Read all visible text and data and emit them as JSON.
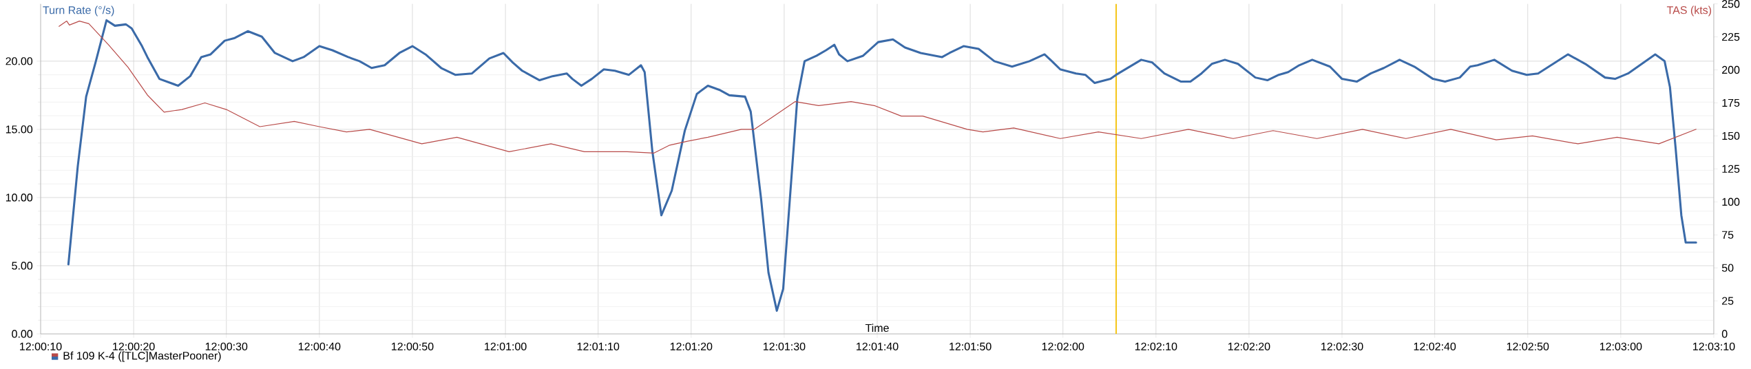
{
  "chart_data": {
    "type": "line",
    "xlabel": "Time",
    "ylabel": "Turn Rate (°/s)",
    "y2label": "TAS (kts)",
    "annotations": [
      "Bf 109 K-4 ([TLC]MasterPooner)"
    ],
    "xlim": [
      12.00278,
      12.05278
    ],
    "xticks": [
      {
        "value": 12.00278,
        "label": "12:00:10"
      },
      {
        "value": 12.00556,
        "label": "12:00:20"
      },
      {
        "value": 12.00833,
        "label": "12:00:30"
      },
      {
        "value": 12.01111,
        "label": "12:00:40"
      },
      {
        "value": 12.01389,
        "label": "12:00:50"
      },
      {
        "value": 12.01667,
        "label": "12:01:00"
      },
      {
        "value": 12.01944,
        "label": "12:01:10"
      },
      {
        "value": 12.02222,
        "label": "12:01:20"
      },
      {
        "value": 12.025,
        "label": "12:01:30"
      },
      {
        "value": 12.02778,
        "label": "12:01:40"
      },
      {
        "value": 12.03056,
        "label": "12:01:50"
      },
      {
        "value": 12.03333,
        "label": "12:02:00"
      },
      {
        "value": 12.03611,
        "label": "12:02:10"
      },
      {
        "value": 12.03889,
        "label": "12:02:20"
      },
      {
        "value": 12.04167,
        "label": "12:02:30"
      },
      {
        "value": 12.04444,
        "label": "12:02:40"
      },
      {
        "value": 12.04722,
        "label": "12:02:50"
      },
      {
        "value": 12.05,
        "label": "12:03:00"
      },
      {
        "value": 12.05278,
        "label": "12:03:10"
      }
    ],
    "ylim": [
      0,
      24.2
    ],
    "yticks": [
      {
        "value": 0,
        "label": "0.00"
      },
      {
        "value": 5,
        "label": "5.00"
      },
      {
        "value": 10,
        "label": "10.00"
      },
      {
        "value": 15,
        "label": "15.00"
      },
      {
        "value": 20,
        "label": "20.00"
      }
    ],
    "y2lim": [
      0,
      250
    ],
    "y2ticks": [
      0,
      25,
      50,
      75,
      100,
      125,
      150,
      175,
      200,
      225,
      250
    ],
    "grid": true,
    "ref_lines": [
      {
        "axis": "x",
        "value": 12.03492,
        "color": "#f5c518"
      }
    ],
    "series": [
      {
        "color": "#3a6aa8",
        "axis": "y",
        "x": [
          12.00361,
          12.00389,
          12.00414,
          12.00442,
          12.00475,
          12.005,
          12.00533,
          12.0055,
          12.00581,
          12.00597,
          12.00633,
          12.00689,
          12.00725,
          12.00758,
          12.00786,
          12.00828,
          12.00858,
          12.00897,
          12.00939,
          12.00978,
          12.01031,
          12.01064,
          12.01111,
          12.0115,
          12.01197,
          12.01231,
          12.01267,
          12.01306,
          12.0135,
          12.01389,
          12.01428,
          12.01475,
          12.01517,
          12.01567,
          12.01619,
          12.01661,
          12.01689,
          12.01717,
          12.01769,
          12.01808,
          12.0185,
          12.01867,
          12.01894,
          12.01925,
          12.01961,
          12.01994,
          12.02036,
          12.02072,
          12.02083,
          12.02106,
          12.02133,
          12.02164,
          12.02203,
          12.02239,
          12.02272,
          12.02306,
          12.02336,
          12.02383,
          12.024,
          12.02431,
          12.02453,
          12.02478,
          12.02497,
          12.02517,
          12.02539,
          12.02561,
          12.02597,
          12.02625,
          12.0265,
          12.02664,
          12.02689,
          12.02736,
          12.02781,
          12.02825,
          12.02861,
          12.02908,
          12.02972,
          12.02994,
          12.03036,
          12.03081,
          12.03128,
          12.03181,
          12.03233,
          12.03278,
          12.033,
          12.03325,
          12.03372,
          12.034,
          12.03428,
          12.03475,
          12.03492,
          12.03567,
          12.036,
          12.03636,
          12.03686,
          12.03714,
          12.03747,
          12.03778,
          12.03817,
          12.03856,
          12.03908,
          12.03944,
          12.03978,
          12.04006,
          12.04039,
          12.04078,
          12.04131,
          12.04167,
          12.04211,
          12.04253,
          12.04292,
          12.04339,
          12.04383,
          12.04439,
          12.04475,
          12.04519,
          12.0455,
          12.04572,
          12.04622,
          12.04675,
          12.04719,
          12.04753,
          12.04842,
          12.04894,
          12.04953,
          12.04983,
          12.05022,
          12.05103,
          12.05131,
          12.05147,
          12.05164,
          12.05181,
          12.05194,
          12.05225
        ],
        "values": [
          5.1,
          12.3,
          17.4,
          19.9,
          23.0,
          22.6,
          22.7,
          22.4,
          21.1,
          20.3,
          18.7,
          18.2,
          18.9,
          20.3,
          20.5,
          21.5,
          21.7,
          22.2,
          21.8,
          20.6,
          20.0,
          20.3,
          21.1,
          20.8,
          20.3,
          20.0,
          19.5,
          19.7,
          20.6,
          21.1,
          20.5,
          19.5,
          19.0,
          19.1,
          20.2,
          20.6,
          19.9,
          19.3,
          18.6,
          18.9,
          19.1,
          18.7,
          18.2,
          18.7,
          19.4,
          19.3,
          19.0,
          19.7,
          19.2,
          13.4,
          8.7,
          10.5,
          14.9,
          17.6,
          18.2,
          17.9,
          17.5,
          17.4,
          16.3,
          9.9,
          4.5,
          1.7,
          3.3,
          9.9,
          17.2,
          20.0,
          20.4,
          20.8,
          21.2,
          20.5,
          20.0,
          20.4,
          21.4,
          21.6,
          21.0,
          20.6,
          20.3,
          20.6,
          21.1,
          20.9,
          20.0,
          19.6,
          20.0,
          20.5,
          20.0,
          19.4,
          19.1,
          19.0,
          18.4,
          18.7,
          19.0,
          20.1,
          19.9,
          19.1,
          18.5,
          18.5,
          19.1,
          19.8,
          20.1,
          19.8,
          18.8,
          18.6,
          19.0,
          19.2,
          19.7,
          20.1,
          19.6,
          18.7,
          18.5,
          19.1,
          19.5,
          20.1,
          19.6,
          18.7,
          18.5,
          18.8,
          19.6,
          19.7,
          20.1,
          19.3,
          19.0,
          19.1,
          20.5,
          19.8,
          18.8,
          18.7,
          19.1,
          20.5,
          20.0,
          18.1,
          13.6,
          8.7,
          6.7,
          6.7
        ]
      },
      {
        "color": "#b84a48",
        "axis": "y2",
        "x": [
          12.00333,
          12.00356,
          12.00364,
          12.00394,
          12.00422,
          12.00481,
          12.00539,
          12.00597,
          12.00647,
          12.007,
          12.00769,
          12.00833,
          12.00933,
          12.01036,
          12.01111,
          12.01192,
          12.01261,
          12.01417,
          12.01522,
          12.01678,
          12.01803,
          12.01903,
          12.02031,
          12.02111,
          12.02158,
          12.02211,
          12.02272,
          12.02372,
          12.02411,
          12.02469,
          12.02533,
          12.02603,
          12.027,
          12.02769,
          12.0285,
          12.02914,
          12.03047,
          12.03094,
          12.03186,
          12.03325,
          12.03439,
          12.03567,
          12.03708,
          12.03842,
          12.03961,
          12.04092,
          12.04228,
          12.04358,
          12.04492,
          12.04628,
          12.04736,
          12.04872,
          12.04989,
          12.05114,
          12.05225
        ],
        "values": [
          233,
          237,
          234,
          237,
          235,
          219,
          202,
          181,
          168,
          170,
          175,
          170,
          157,
          161,
          157,
          153,
          155,
          144,
          149,
          138,
          144,
          138,
          138,
          137,
          143,
          146,
          149,
          155,
          155,
          165,
          176,
          173,
          176,
          173,
          165,
          165,
          155,
          153,
          156,
          148,
          153,
          148,
          155,
          148,
          154,
          148,
          155,
          148,
          155,
          147,
          150,
          144,
          149,
          144,
          155
        ]
      }
    ]
  }
}
